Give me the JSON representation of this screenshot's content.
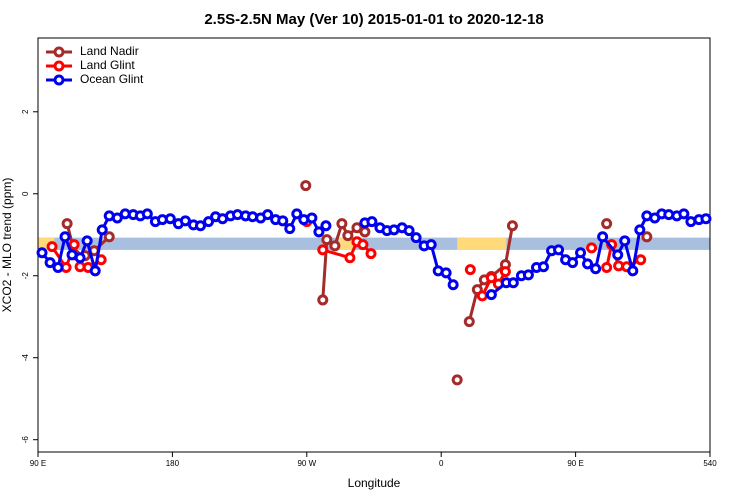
{
  "chart_data": {
    "type": "line",
    "title": "2.5S-2.5N May (Ver 10)   2015-01-01 to 2020-12-18",
    "x_label": "Longitude",
    "y_label": "XCO2 - MLO trend (ppm)",
    "xlim": [
      90,
      540
    ],
    "ylim": [
      -6.3,
      3.8
    ],
    "xticks": [
      {
        "value": 90,
        "label": "90 E"
      },
      180,
      {
        "value": 270,
        "label": "90 W"
      },
      {
        "value": 360,
        "label": "0"
      },
      {
        "value": 450,
        "label": "90 E"
      },
      540
    ],
    "yticks": [
      -6,
      -4,
      -2,
      0,
      2
    ],
    "legend": "top-left",
    "band": {
      "range": [
        -1.37,
        -1.07
      ],
      "color": "#a8bfdf",
      "highlight_color": "#ffd97a",
      "highlights": [
        [
          90,
          101
        ],
        [
          291.5,
          301
        ],
        [
          370.7,
          403.6
        ]
      ]
    },
    "series": [
      {
        "name": "Land Nadir",
        "color": "#a52a2a",
        "x": [
          109.5,
          114.8,
          121.6,
          127.6,
          137.7,
          null,
          269.3,
          null,
          280.7,
          283.4,
          288.8,
          293.5,
          297.5,
          303.6,
          308.9,
          null,
          370.7,
          null,
          378.8,
          384.2,
          388.9,
          393.6,
          403.0,
          407.7,
          null,
          470.8,
          null,
          497.7
        ],
        "values": [
          -0.73,
          -1.49,
          -1.51,
          -1.39,
          -1.05,
          null,
          0.2,
          null,
          -2.59,
          -1.12,
          -1.27,
          -0.73,
          -1.02,
          -0.83,
          -0.93,
          null,
          -4.54,
          null,
          -3.12,
          -2.34,
          -2.1,
          -2.02,
          -1.73,
          -0.78,
          null,
          -0.73,
          null,
          -1.05
        ]
      },
      {
        "name": "Land Glint",
        "color": "#ff0000",
        "x": [
          99.4,
          108.8,
          114.2,
          118.2,
          123.6,
          132.3,
          null,
          270.0,
          null,
          280.7,
          298.9,
          303.6,
          307.6,
          313.0,
          null,
          379.5,
          null,
          387.5,
          393.6,
          398.3,
          403.0,
          null,
          460.7,
          null,
          470.8,
          474.1,
          478.8,
          484.2,
          493.6
        ],
        "values": [
          -1.29,
          -1.8,
          -1.24,
          -1.78,
          -1.8,
          -1.61,
          null,
          -0.68,
          null,
          -1.37,
          -1.56,
          -1.17,
          -1.24,
          -1.46,
          null,
          -1.85,
          null,
          -2.49,
          -2.05,
          -2.2,
          -1.9,
          null,
          -1.32,
          null,
          -1.8,
          -1.24,
          -1.76,
          -1.78,
          -1.61
        ]
      },
      {
        "name": "Ocean Glint",
        "color": "#0000ee",
        "x": [
          92.7,
          98.1,
          103.4,
          108.1,
          112.8,
          118.2,
          122.9,
          128.3,
          133.0,
          137.7,
          143.1,
          148.4,
          153.8,
          158.5,
          163.2,
          168.6,
          173.3,
          178.6,
          184.0,
          188.7,
          194.1,
          198.8,
          204.2,
          208.9,
          213.6,
          218.9,
          223.6,
          229.0,
          233.7,
          239.1,
          243.8,
          249.1,
          253.9,
          258.6,
          263.3,
          268.0,
          273.4,
          278.1,
          282.8,
          null,
          308.9,
          313.6,
          319.0,
          323.7,
          328.4,
          333.8,
          338.5,
          343.2,
          348.6,
          353.3,
          358.0,
          363.3,
          368.0,
          null,
          393.6,
          403.6,
          408.3,
          413.7,
          418.4,
          423.8,
          428.5,
          433.9,
          438.6,
          443.3,
          448.0,
          453.3,
          458.0,
          463.4,
          468.1,
          478.2,
          482.9,
          488.3,
          493.0,
          497.7,
          503.0,
          507.7,
          512.4,
          517.8,
          522.5,
          527.2,
          532.6,
          537.3
        ],
        "values": [
          -1.44,
          -1.68,
          -1.8,
          -1.05,
          -1.49,
          -1.56,
          -1.15,
          -1.88,
          -0.88,
          -0.54,
          -0.59,
          -0.49,
          -0.51,
          -0.54,
          -0.49,
          -0.68,
          -0.63,
          -0.61,
          -0.73,
          -0.66,
          -0.76,
          -0.78,
          -0.68,
          -0.56,
          -0.61,
          -0.54,
          -0.51,
          -0.54,
          -0.56,
          -0.59,
          -0.51,
          -0.63,
          -0.66,
          -0.85,
          -0.49,
          -0.63,
          -0.59,
          -0.93,
          -0.78,
          null,
          -0.71,
          -0.68,
          -0.83,
          -0.9,
          -0.88,
          -0.83,
          -0.9,
          -1.07,
          -1.27,
          -1.24,
          -1.88,
          -1.93,
          -2.22,
          null,
          -2.46,
          -2.17,
          -2.17,
          -2.0,
          -1.98,
          -1.8,
          -1.78,
          -1.39,
          -1.37,
          -1.61,
          -1.68,
          -1.44,
          -1.71,
          -1.83,
          -1.05,
          -1.49,
          -1.15,
          -1.88,
          -0.88,
          -0.54,
          -0.59,
          -0.49,
          -0.51,
          -0.54,
          -0.49,
          -0.68,
          -0.63,
          -0.61
        ]
      }
    ]
  }
}
